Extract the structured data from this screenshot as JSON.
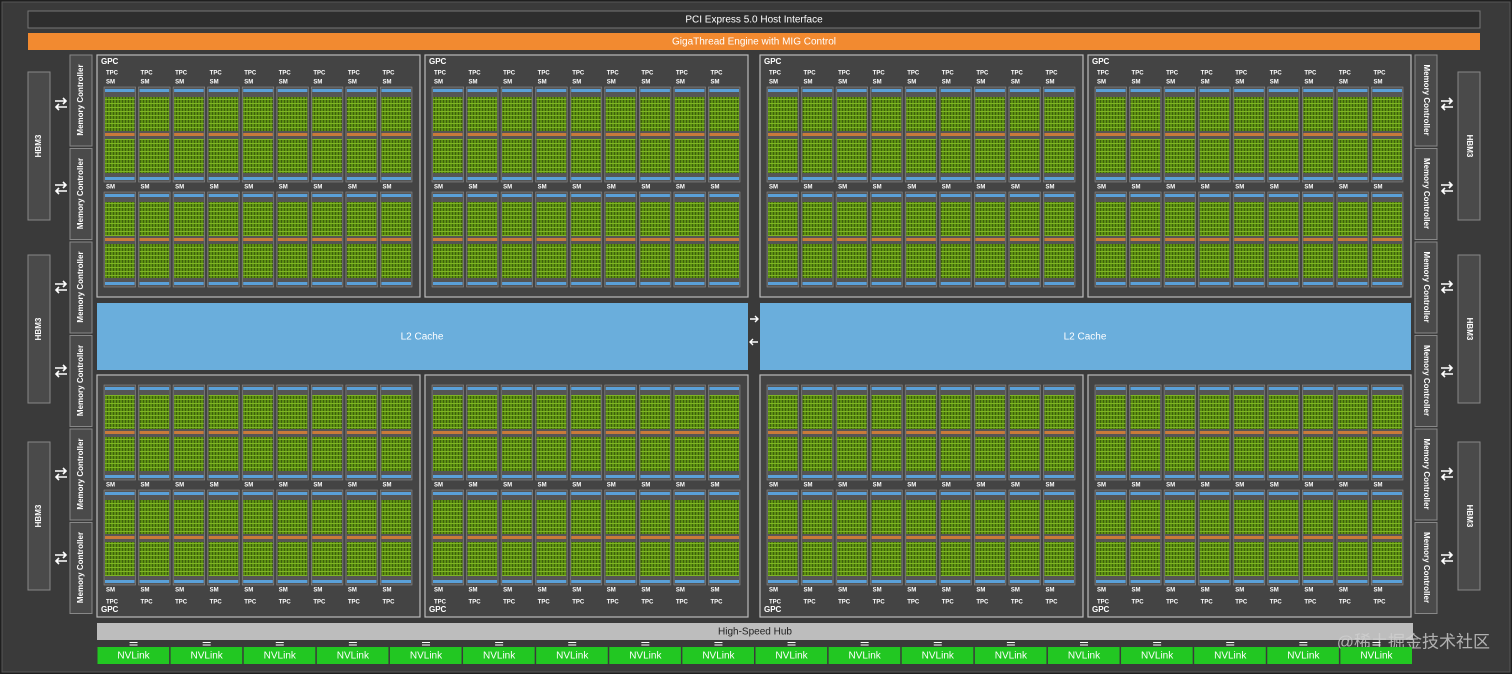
{
  "header": {
    "pcie": "PCI Express 5.0 Host Interface",
    "gigathread": "GigaThread Engine with MIG Control"
  },
  "gpcs": [
    {
      "label": "GPC",
      "tpcs": [
        {
          "label": "TPC",
          "sms": [
            "SM",
            "SM"
          ]
        },
        {
          "label": "TPC",
          "sms": [
            "SM",
            "SM"
          ]
        },
        {
          "label": "TPC",
          "sms": [
            "SM",
            "SM"
          ]
        },
        {
          "label": "TPC",
          "sms": [
            "SM",
            "SM"
          ]
        },
        {
          "label": "TPC",
          "sms": [
            "SM",
            "SM"
          ]
        },
        {
          "label": "TPC",
          "sms": [
            "SM",
            "SM"
          ]
        },
        {
          "label": "TPC",
          "sms": [
            "SM",
            "SM"
          ]
        },
        {
          "label": "TPC",
          "sms": [
            "SM",
            "SM"
          ]
        },
        {
          "label": "TPC",
          "sms": [
            "SM",
            "SM"
          ]
        }
      ]
    },
    {
      "label": "GPC",
      "tpcs": [
        {
          "label": "TPC",
          "sms": [
            "SM",
            "SM"
          ]
        },
        {
          "label": "TPC",
          "sms": [
            "SM",
            "SM"
          ]
        },
        {
          "label": "TPC",
          "sms": [
            "SM",
            "SM"
          ]
        },
        {
          "label": "TPC",
          "sms": [
            "SM",
            "SM"
          ]
        },
        {
          "label": "TPC",
          "sms": [
            "SM",
            "SM"
          ]
        },
        {
          "label": "TPC",
          "sms": [
            "SM",
            "SM"
          ]
        },
        {
          "label": "TPC",
          "sms": [
            "SM",
            "SM"
          ]
        },
        {
          "label": "TPC",
          "sms": [
            "SM",
            "SM"
          ]
        },
        {
          "label": "TPC",
          "sms": [
            "SM",
            "SM"
          ]
        }
      ]
    },
    {
      "label": "GPC",
      "tpcs": [
        {
          "label": "TPC",
          "sms": [
            "SM",
            "SM"
          ]
        },
        {
          "label": "TPC",
          "sms": [
            "SM",
            "SM"
          ]
        },
        {
          "label": "TPC",
          "sms": [
            "SM",
            "SM"
          ]
        },
        {
          "label": "TPC",
          "sms": [
            "SM",
            "SM"
          ]
        },
        {
          "label": "TPC",
          "sms": [
            "SM",
            "SM"
          ]
        },
        {
          "label": "TPC",
          "sms": [
            "SM",
            "SM"
          ]
        },
        {
          "label": "TPC",
          "sms": [
            "SM",
            "SM"
          ]
        },
        {
          "label": "TPC",
          "sms": [
            "SM",
            "SM"
          ]
        },
        {
          "label": "TPC",
          "sms": [
            "SM",
            "SM"
          ]
        }
      ]
    },
    {
      "label": "GPC",
      "tpcs": [
        {
          "label": "TPC",
          "sms": [
            "SM",
            "SM"
          ]
        },
        {
          "label": "TPC",
          "sms": [
            "SM",
            "SM"
          ]
        },
        {
          "label": "TPC",
          "sms": [
            "SM",
            "SM"
          ]
        },
        {
          "label": "TPC",
          "sms": [
            "SM",
            "SM"
          ]
        },
        {
          "label": "TPC",
          "sms": [
            "SM",
            "SM"
          ]
        },
        {
          "label": "TPC",
          "sms": [
            "SM",
            "SM"
          ]
        },
        {
          "label": "TPC",
          "sms": [
            "SM",
            "SM"
          ]
        },
        {
          "label": "TPC",
          "sms": [
            "SM",
            "SM"
          ]
        },
        {
          "label": "TPC",
          "sms": [
            "SM",
            "SM"
          ]
        }
      ]
    },
    {
      "label": "GPC",
      "tpcs": [
        {
          "label": "TPC",
          "sms": [
            "SM",
            "SM"
          ]
        },
        {
          "label": "TPC",
          "sms": [
            "SM",
            "SM"
          ]
        },
        {
          "label": "TPC",
          "sms": [
            "SM",
            "SM"
          ]
        },
        {
          "label": "TPC",
          "sms": [
            "SM",
            "SM"
          ]
        },
        {
          "label": "TPC",
          "sms": [
            "SM",
            "SM"
          ]
        },
        {
          "label": "TPC",
          "sms": [
            "SM",
            "SM"
          ]
        },
        {
          "label": "TPC",
          "sms": [
            "SM",
            "SM"
          ]
        },
        {
          "label": "TPC",
          "sms": [
            "SM",
            "SM"
          ]
        },
        {
          "label": "TPC",
          "sms": [
            "SM",
            "SM"
          ]
        }
      ]
    },
    {
      "label": "GPC",
      "tpcs": [
        {
          "label": "TPC",
          "sms": [
            "SM",
            "SM"
          ]
        },
        {
          "label": "TPC",
          "sms": [
            "SM",
            "SM"
          ]
        },
        {
          "label": "TPC",
          "sms": [
            "SM",
            "SM"
          ]
        },
        {
          "label": "TPC",
          "sms": [
            "SM",
            "SM"
          ]
        },
        {
          "label": "TPC",
          "sms": [
            "SM",
            "SM"
          ]
        },
        {
          "label": "TPC",
          "sms": [
            "SM",
            "SM"
          ]
        },
        {
          "label": "TPC",
          "sms": [
            "SM",
            "SM"
          ]
        },
        {
          "label": "TPC",
          "sms": [
            "SM",
            "SM"
          ]
        },
        {
          "label": "TPC",
          "sms": [
            "SM",
            "SM"
          ]
        }
      ]
    },
    {
      "label": "GPC",
      "tpcs": [
        {
          "label": "TPC",
          "sms": [
            "SM",
            "SM"
          ]
        },
        {
          "label": "TPC",
          "sms": [
            "SM",
            "SM"
          ]
        },
        {
          "label": "TPC",
          "sms": [
            "SM",
            "SM"
          ]
        },
        {
          "label": "TPC",
          "sms": [
            "SM",
            "SM"
          ]
        },
        {
          "label": "TPC",
          "sms": [
            "SM",
            "SM"
          ]
        },
        {
          "label": "TPC",
          "sms": [
            "SM",
            "SM"
          ]
        },
        {
          "label": "TPC",
          "sms": [
            "SM",
            "SM"
          ]
        },
        {
          "label": "TPC",
          "sms": [
            "SM",
            "SM"
          ]
        },
        {
          "label": "TPC",
          "sms": [
            "SM",
            "SM"
          ]
        }
      ]
    },
    {
      "label": "GPC",
      "tpcs": [
        {
          "label": "TPC",
          "sms": [
            "SM",
            "SM"
          ]
        },
        {
          "label": "TPC",
          "sms": [
            "SM",
            "SM"
          ]
        },
        {
          "label": "TPC",
          "sms": [
            "SM",
            "SM"
          ]
        },
        {
          "label": "TPC",
          "sms": [
            "SM",
            "SM"
          ]
        },
        {
          "label": "TPC",
          "sms": [
            "SM",
            "SM"
          ]
        },
        {
          "label": "TPC",
          "sms": [
            "SM",
            "SM"
          ]
        },
        {
          "label": "TPC",
          "sms": [
            "SM",
            "SM"
          ]
        },
        {
          "label": "TPC",
          "sms": [
            "SM",
            "SM"
          ]
        },
        {
          "label": "TPC",
          "sms": [
            "SM",
            "SM"
          ]
        }
      ]
    }
  ],
  "l2_cache": [
    "L2 Cache",
    "L2 Cache"
  ],
  "memory_controllers": {
    "left": [
      "Memory Controller",
      "Memory Controller",
      "Memory Controller",
      "Memory Controller",
      "Memory Controller",
      "Memory Controller"
    ],
    "right": [
      "Memory Controller",
      "Memory Controller",
      "Memory Controller",
      "Memory Controller",
      "Memory Controller",
      "Memory Controller"
    ]
  },
  "hbm": {
    "left": [
      "HBM3",
      "HBM3",
      "HBM3"
    ],
    "right": [
      "HBM3",
      "HBM3",
      "HBM3"
    ]
  },
  "hub": "High-Speed Hub",
  "nvlinks": [
    "NVLink",
    "NVLink",
    "NVLink",
    "NVLink",
    "NVLink",
    "NVLink",
    "NVLink",
    "NVLink",
    "NVLink",
    "NVLink",
    "NVLink",
    "NVLink",
    "NVLink",
    "NVLink",
    "NVLink",
    "NVLink",
    "NVLink",
    "NVLink"
  ],
  "watermark": "@稀土掘金技术社区"
}
